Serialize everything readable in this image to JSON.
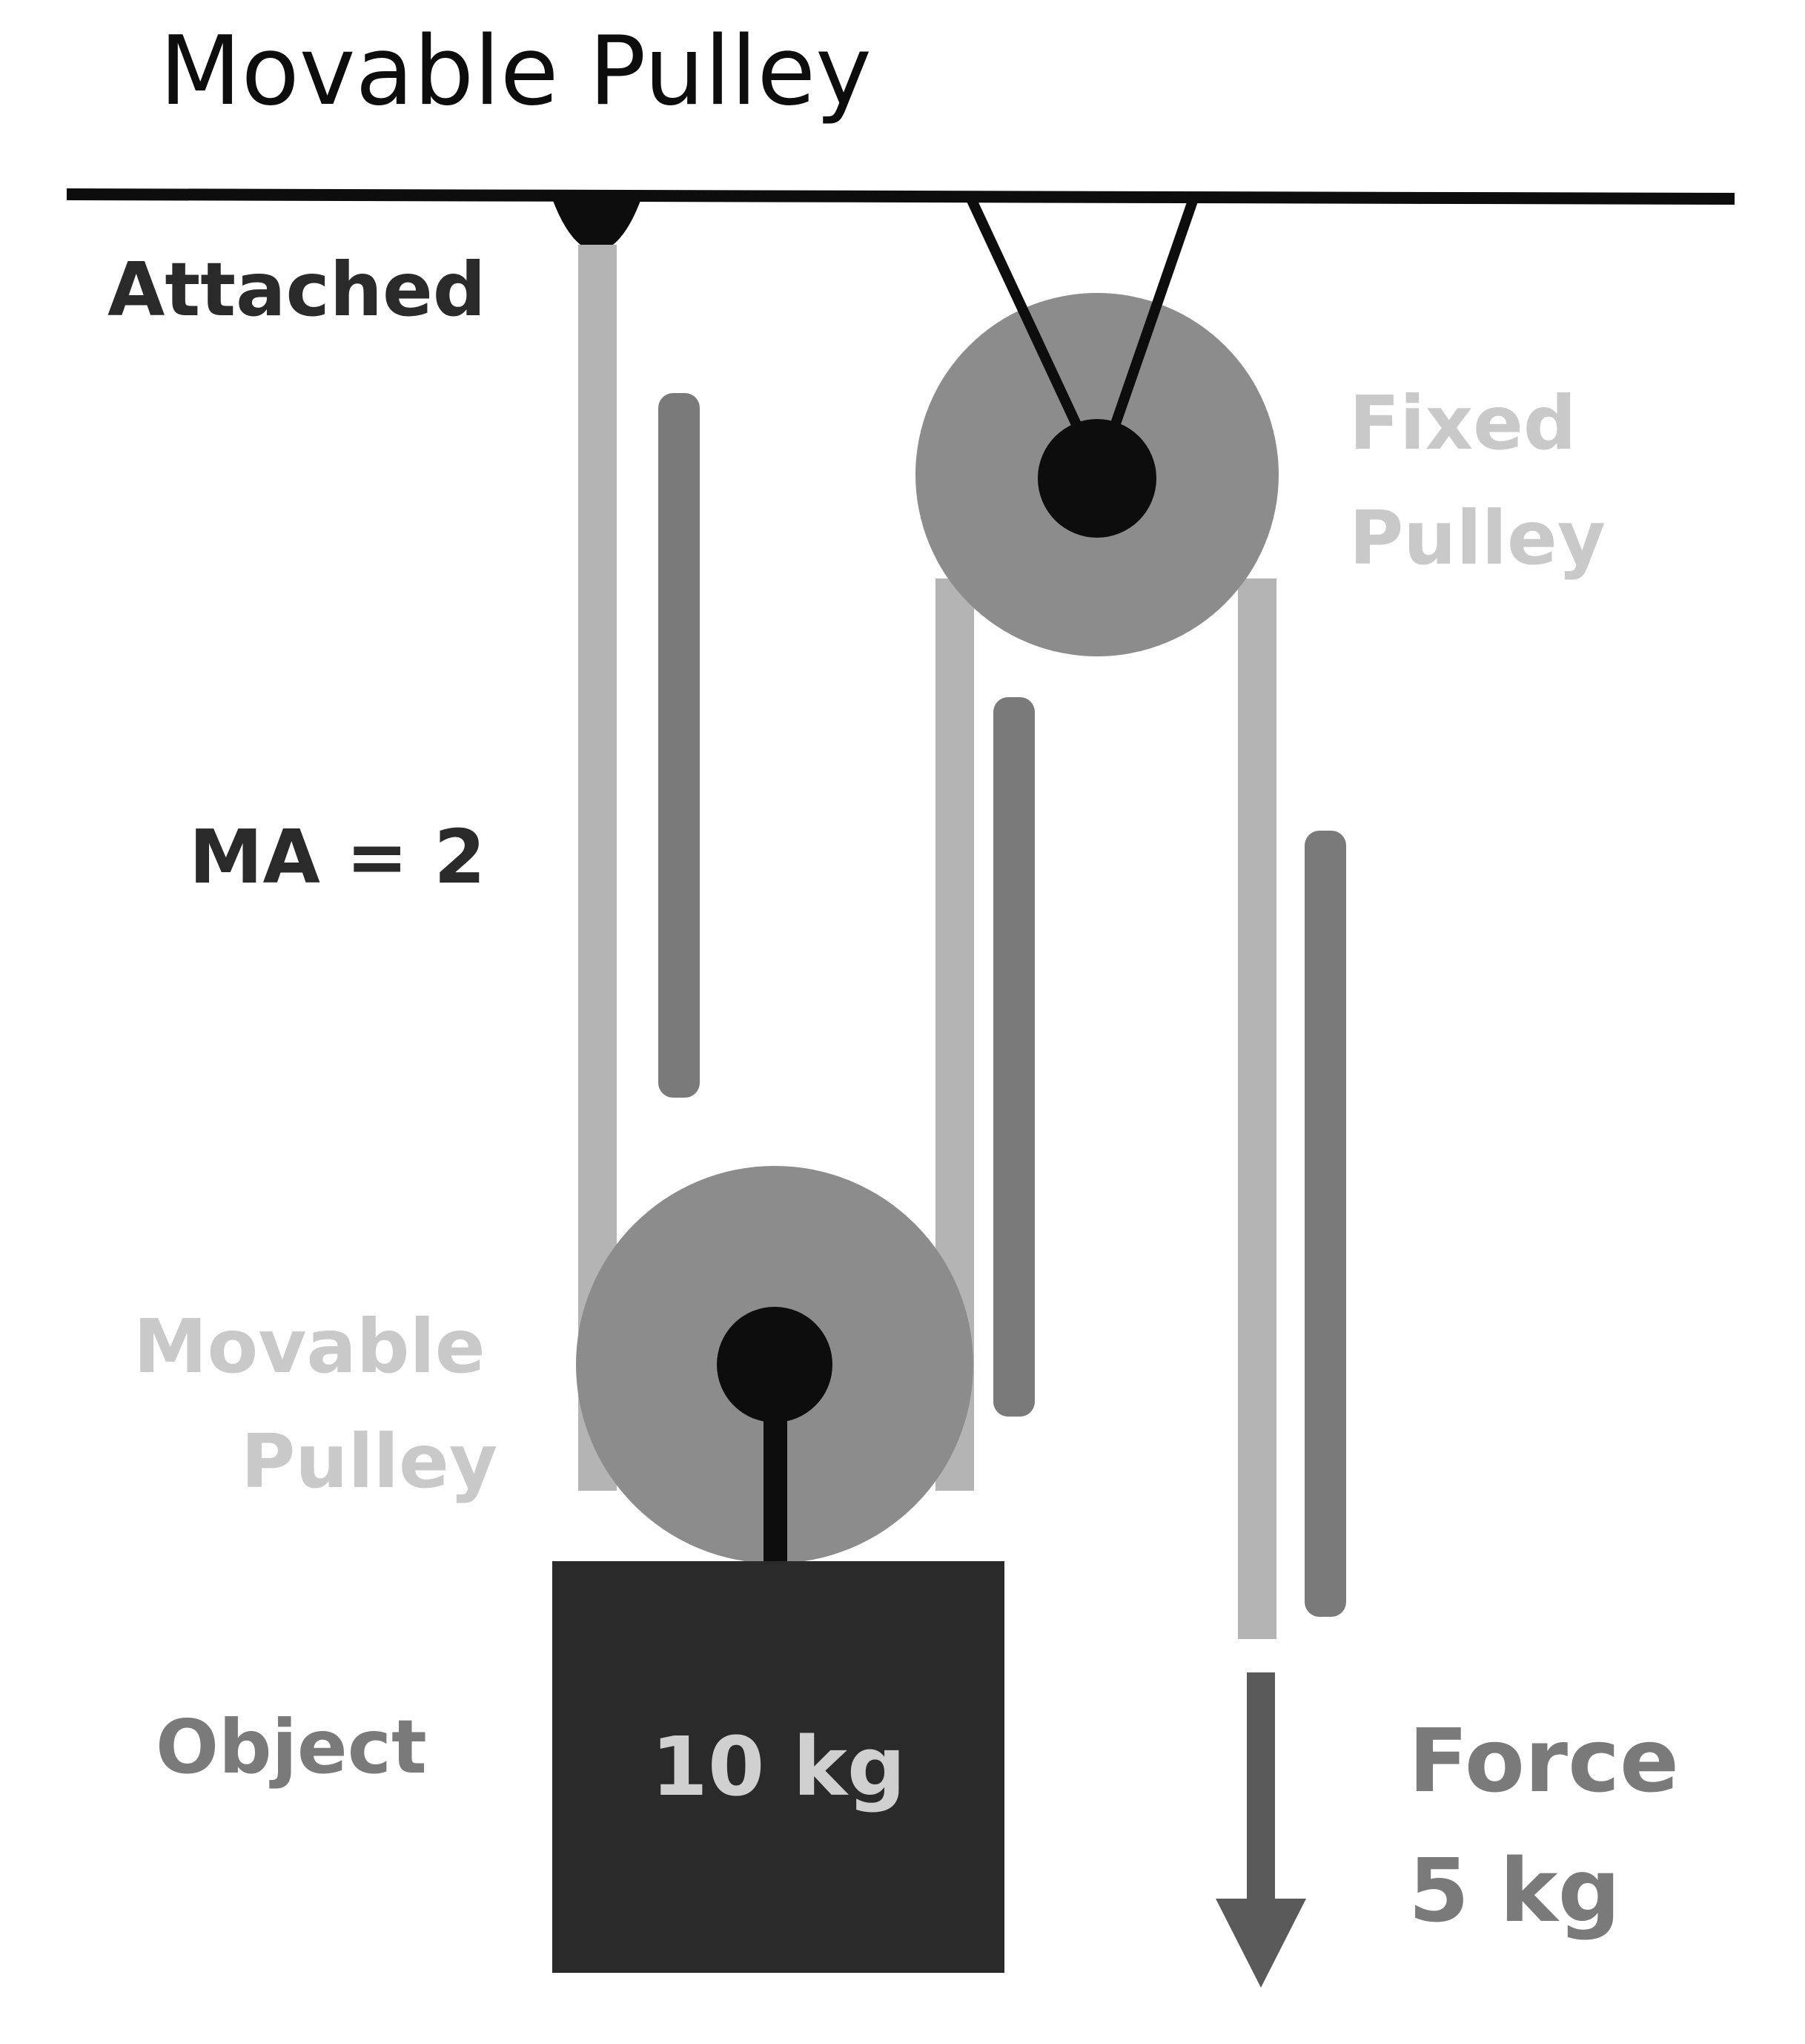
{
  "title": "Movable Pulley",
  "labels": {
    "attached": "Attached",
    "fixed_pulley_line1": "Fixed",
    "fixed_pulley_line2": "Pulley",
    "mechanical_advantage": "MA = 2",
    "movable_pulley_line1": "Movable",
    "movable_pulley_line2": "Pulley",
    "object": "Object",
    "object_weight": "10 kg",
    "force_line1": "Force",
    "force_line2": "5 kg"
  },
  "colors": {
    "background": "#ffffff",
    "ink": "#0d0d0d",
    "dark_gray": "#2a2a2a",
    "mid_gray": "#7a7a7a",
    "light_gray": "#c9c9c9",
    "pulley_gray": "#8c8c8c",
    "rope_gray": "#b4b4b4"
  }
}
